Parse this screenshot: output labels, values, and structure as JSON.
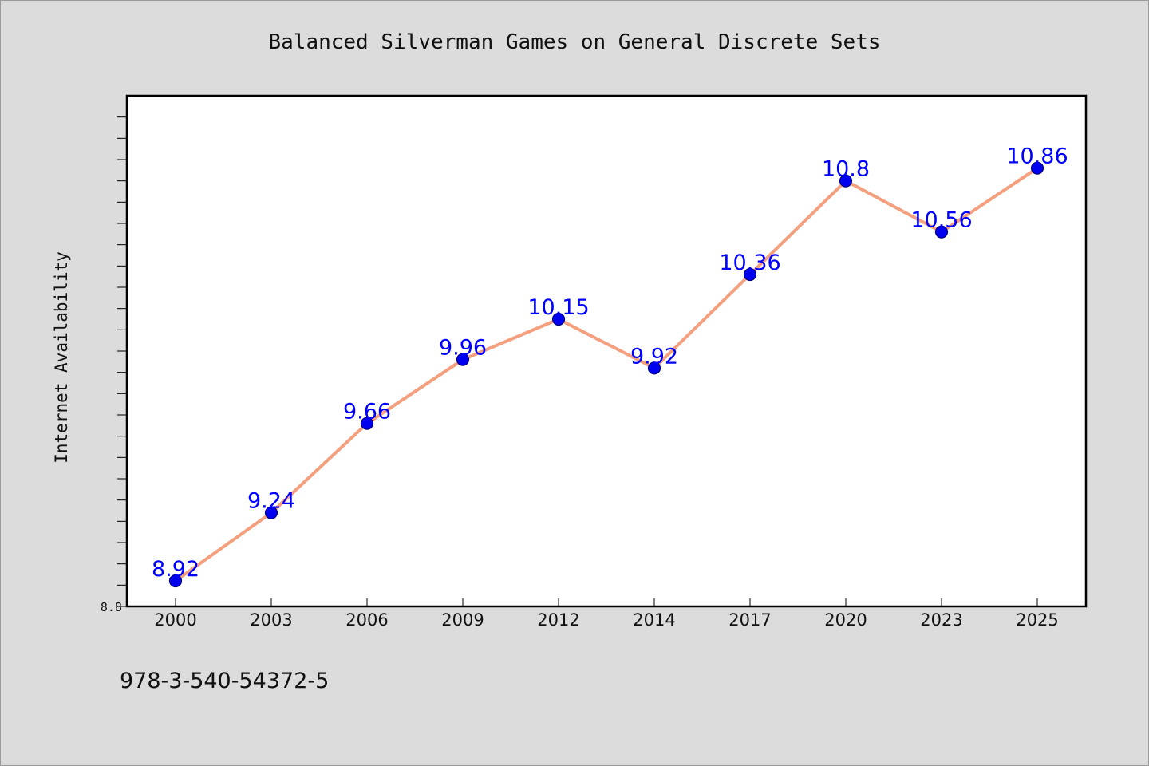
{
  "chart_data": {
    "type": "line",
    "title": "Balanced Silverman Games on General Discrete Sets",
    "xlabel": "",
    "ylabel": "Internet Availability",
    "categories": [
      "2000",
      "2003",
      "2006",
      "2009",
      "2012",
      "2014",
      "2017",
      "2020",
      "2023",
      "2025"
    ],
    "series": [
      {
        "values": [
          8.92,
          9.24,
          9.66,
          9.96,
          10.15,
          9.92,
          10.36,
          10.8,
          10.56,
          10.86
        ]
      }
    ],
    "data_labels": [
      "8.92",
      "9.24",
      "9.66",
      "9.96",
      "10.15",
      "9.92",
      "10.36",
      "10.8",
      "10.56",
      "10.86"
    ],
    "ylim": [
      8.8,
      11.2
    ],
    "ytick_labels": [
      {
        "value": 8.8,
        "label": "8.8"
      }
    ],
    "minor_tick_step": 0.1,
    "grid": false,
    "legend": "none",
    "colors": {
      "line": "#f4a07e",
      "marker_fill": "#0000ee",
      "marker_edge": "#000080",
      "data_label": "#0000ff",
      "background": "#dcdcdc",
      "plot_area": "#ffffff"
    }
  },
  "footer": {
    "isbn": "978-3-540-54372-5"
  }
}
